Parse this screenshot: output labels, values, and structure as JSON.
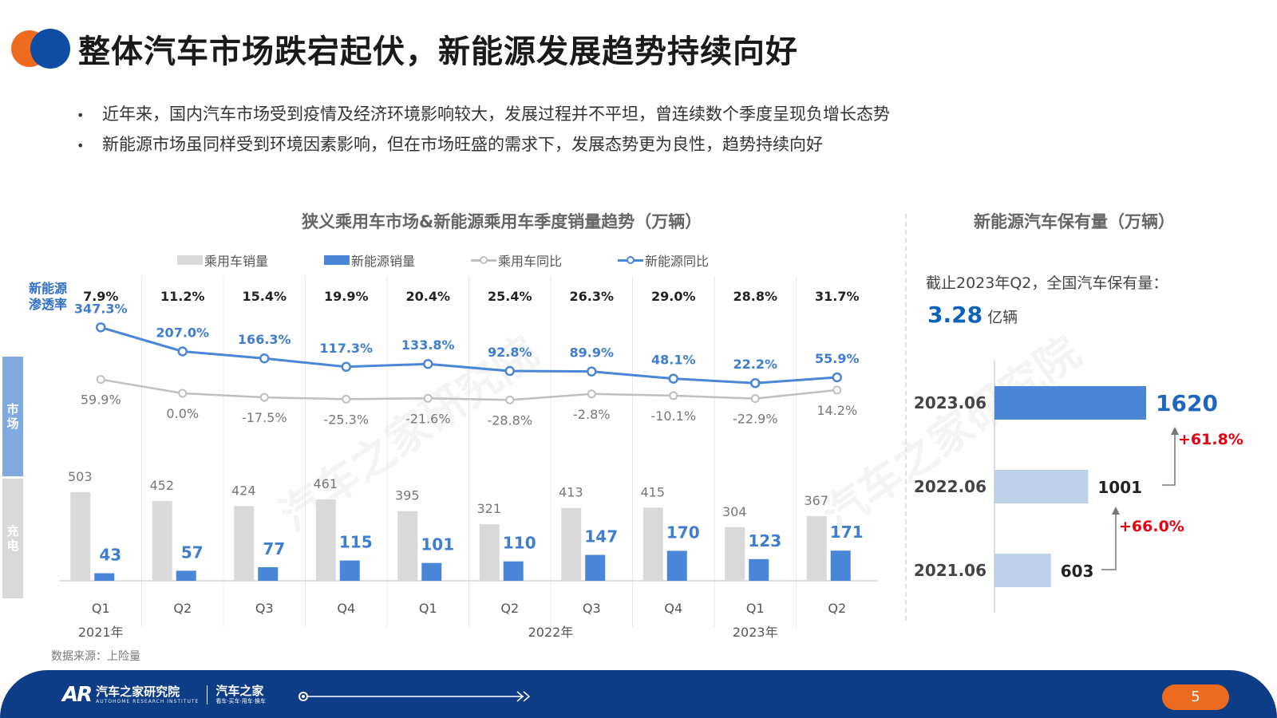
{
  "page": {
    "title": "整体汽车市场跌宕起伏，新能源发展趋势持续向好",
    "bullets": [
      "近年来，国内汽车市场受到疫情及经济环境影响较大，发展过程并不平坦，曾连续数个季度呈现负增长态势",
      "新能源市场虽同样受到环境因素影响，但在市场旺盛的需求下，发展态势更为良性，趋势持续向好"
    ],
    "bullet_symbol": "•",
    "source": "数据来源：上险量",
    "page_number": "5",
    "watermark": "汽车之家研究院"
  },
  "left_panel": {
    "penetration_label_line1": "新能源",
    "penetration_label_line2": "渗透率",
    "tab_market": "市场",
    "tab_charge": "充电"
  },
  "right_panel": {
    "summary": "截止2023年Q2，全国汽车保有量：",
    "total_value": "3.28",
    "total_unit": "亿辆"
  },
  "footer": {
    "logo_mark": "AR",
    "brand_cn": "汽车之家研究院",
    "brand_en": "AUTOHOME RESEARCH INSTITUTE",
    "brand2_cn": "汽车之家",
    "brand2_tag": "看车·买车·用车·换车"
  },
  "colors": {
    "pv_bar": "#D9D9D9",
    "nev_bar": "#4A86D8",
    "pv_line": "#BFBFBF",
    "nev_line": "#4A86D8",
    "accent_orange": "#ED6A1E",
    "accent_navy": "#0D3D87",
    "growth_red": "#E60012"
  },
  "chart_data": [
    {
      "type": "bar+line",
      "title": "狭义乘用车市场&新能源乘用车季度销量趋势（万辆）",
      "legend": [
        "乘用车销量",
        "新能源销量",
        "乘用车同比",
        "新能源同比"
      ],
      "categories": [
        "Q1",
        "Q2",
        "Q3",
        "Q4",
        "Q1",
        "Q2",
        "Q3",
        "Q4",
        "Q1",
        "Q2"
      ],
      "year_groups": [
        {
          "label": "2021年",
          "start": 0,
          "end": 3
        },
        {
          "label": "2022年",
          "start": 4,
          "end": 7
        },
        {
          "label": "2023年",
          "start": 8,
          "end": 9
        }
      ],
      "penetration_rate": [
        "7.9%",
        "11.2%",
        "15.4%",
        "19.9%",
        "20.4%",
        "25.4%",
        "26.3%",
        "29.0%",
        "28.8%",
        "31.7%"
      ],
      "series": [
        {
          "name": "乘用车销量",
          "kind": "bar",
          "values": [
            503,
            452,
            424,
            461,
            395,
            321,
            413,
            415,
            304,
            367
          ]
        },
        {
          "name": "新能源销量",
          "kind": "bar",
          "values": [
            43,
            57,
            77,
            115,
            101,
            110,
            147,
            170,
            123,
            171
          ]
        },
        {
          "name": "乘用车同比",
          "kind": "line",
          "values": [
            59.9,
            0.0,
            -17.5,
            -25.3,
            -21.6,
            -28.8,
            -2.8,
            -10.1,
            -22.9,
            14.2
          ],
          "labels": [
            "59.9%",
            "0.0%",
            "-17.5%",
            "-25.3%",
            "-21.6%",
            "-28.8%",
            "-2.8%",
            "-10.1%",
            "-22.9%",
            "14.2%"
          ]
        },
        {
          "name": "新能源同比",
          "kind": "line",
          "values": [
            347.3,
            207.0,
            166.3,
            117.3,
            133.8,
            92.8,
            89.9,
            48.1,
            22.2,
            55.9
          ],
          "labels": [
            "347.3%",
            "207.0%",
            "166.3%",
            "117.3%",
            "133.8%",
            "92.8%",
            "89.9%",
            "48.1%",
            "22.2%",
            "55.9%"
          ]
        }
      ]
    },
    {
      "type": "bar",
      "orientation": "horizontal",
      "title": "新能源汽车保有量（万辆）",
      "categories": [
        "2023.06",
        "2022.06",
        "2021.06"
      ],
      "values": [
        1620,
        1001,
        603
      ],
      "growth": [
        {
          "label": "+61.8%",
          "from": "2022.06",
          "to": "2023.06"
        },
        {
          "label": "+66.0%",
          "from": "2021.06",
          "to": "2022.06"
        }
      ]
    }
  ]
}
